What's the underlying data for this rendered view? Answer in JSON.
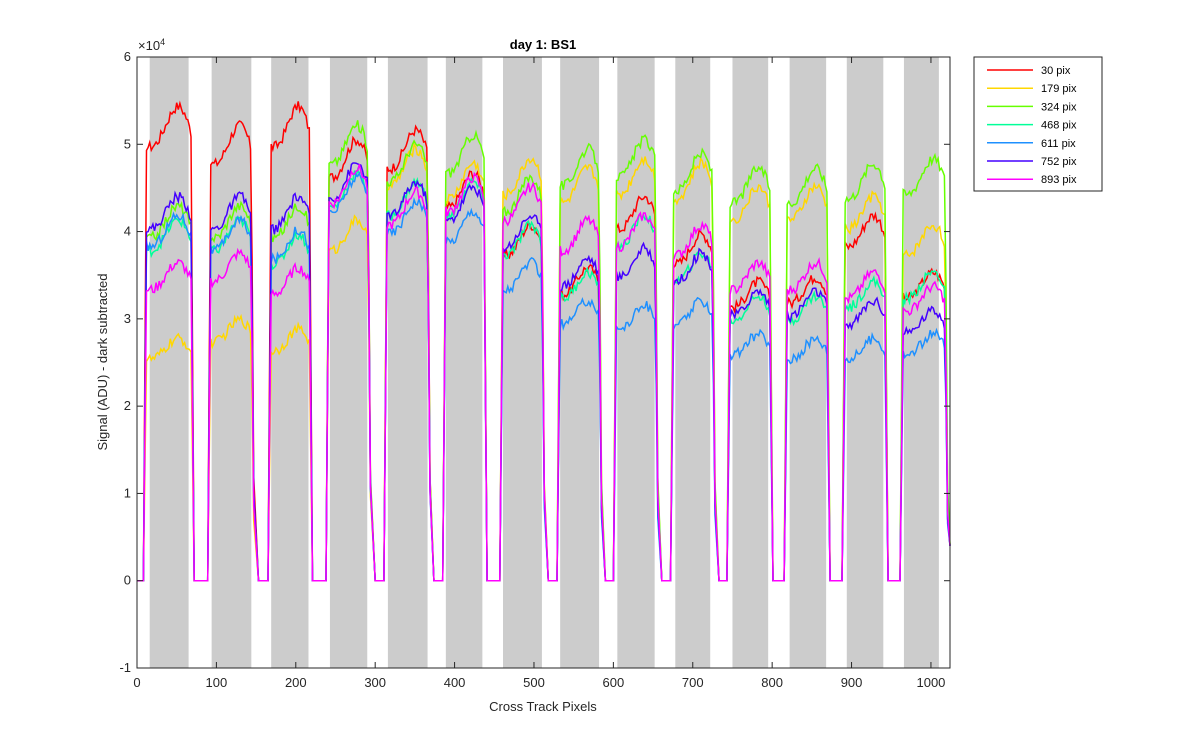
{
  "chart_data": {
    "type": "line",
    "title": "day 1: BS1",
    "xlabel": "Cross Track Pixels",
    "ylabel": "Signal (ADU) - dark subtracted",
    "xlim": [
      0,
      1024
    ],
    "ylim": [
      -1,
      6
    ],
    "y_exponent_label": "×10",
    "y_exponent_power": "4",
    "xticks": [
      0,
      100,
      200,
      300,
      400,
      500,
      600,
      700,
      800,
      900,
      1000
    ],
    "yticks": [
      -1,
      0,
      1,
      2,
      3,
      4,
      5,
      6
    ],
    "shaded_regions": [
      [
        16,
        65
      ],
      [
        94,
        144
      ],
      [
        169,
        216
      ],
      [
        243,
        290
      ],
      [
        316,
        366
      ],
      [
        389,
        435
      ],
      [
        461,
        510
      ],
      [
        533,
        582
      ],
      [
        605,
        652
      ],
      [
        678,
        722
      ],
      [
        750,
        795
      ],
      [
        822,
        868
      ],
      [
        894,
        940
      ],
      [
        966,
        1010
      ]
    ],
    "shade_color": "#cccccc",
    "valley_centers": [
      80,
      156,
      229,
      303,
      377,
      448,
      521,
      593,
      664,
      736,
      808,
      880,
      953
    ],
    "segments": [
      [
        8,
        72
      ],
      [
        89,
        148
      ],
      [
        165,
        221
      ],
      [
        238,
        295
      ],
      [
        311,
        370
      ],
      [
        385,
        441
      ],
      [
        457,
        514
      ],
      [
        529,
        586
      ],
      [
        600,
        657
      ],
      [
        672,
        729
      ],
      [
        743,
        801
      ],
      [
        815,
        873
      ],
      [
        888,
        946
      ],
      [
        961,
        1022
      ]
    ],
    "series": [
      {
        "name": "30 pix",
        "color": "#ff0000",
        "levels": [
          5.0,
          4.8,
          5.0,
          4.65,
          4.75,
          4.3,
          3.75,
          3.3,
          4.05,
          3.65,
          3.15,
          3.2,
          3.85,
          3.25
        ]
      },
      {
        "name": "179 pix",
        "color": "#ffd700",
        "levels": [
          2.55,
          2.75,
          2.65,
          3.8,
          4.55,
          4.4,
          4.45,
          4.35,
          4.45,
          4.4,
          4.15,
          4.15,
          4.05,
          3.75
        ]
      },
      {
        "name": "324 pix",
        "color": "#66ff00",
        "levels": [
          3.95,
          3.95,
          3.95,
          4.8,
          4.6,
          4.7,
          4.25,
          4.55,
          4.65,
          4.5,
          4.35,
          4.35,
          4.4,
          4.45
        ]
      },
      {
        "name": "468 pix",
        "color": "#00ff99",
        "levels": [
          3.8,
          3.8,
          3.65,
          4.3,
          4.2,
          4.2,
          3.75,
          3.25,
          3.85,
          3.45,
          3.0,
          3.0,
          3.15,
          3.25
        ]
      },
      {
        "name": "611 pix",
        "color": "#1e90ff",
        "levels": [
          3.85,
          3.8,
          3.7,
          4.25,
          4.0,
          3.9,
          3.35,
          2.95,
          2.9,
          2.95,
          2.6,
          2.55,
          2.55,
          2.6
        ]
      },
      {
        "name": "752 pix",
        "color": "#4400ff",
        "levels": [
          4.05,
          4.05,
          4.05,
          4.4,
          4.2,
          4.15,
          3.85,
          3.4,
          3.5,
          3.45,
          3.05,
          3.05,
          2.95,
          2.85
        ]
      },
      {
        "name": "893 pix",
        "color": "#ff00ff",
        "levels": [
          3.35,
          3.45,
          3.3,
          4.35,
          4.1,
          4.25,
          4.15,
          3.8,
          3.85,
          3.75,
          3.35,
          3.35,
          3.25,
          3.1
        ]
      }
    ],
    "legend_position": "outside-top-right"
  }
}
